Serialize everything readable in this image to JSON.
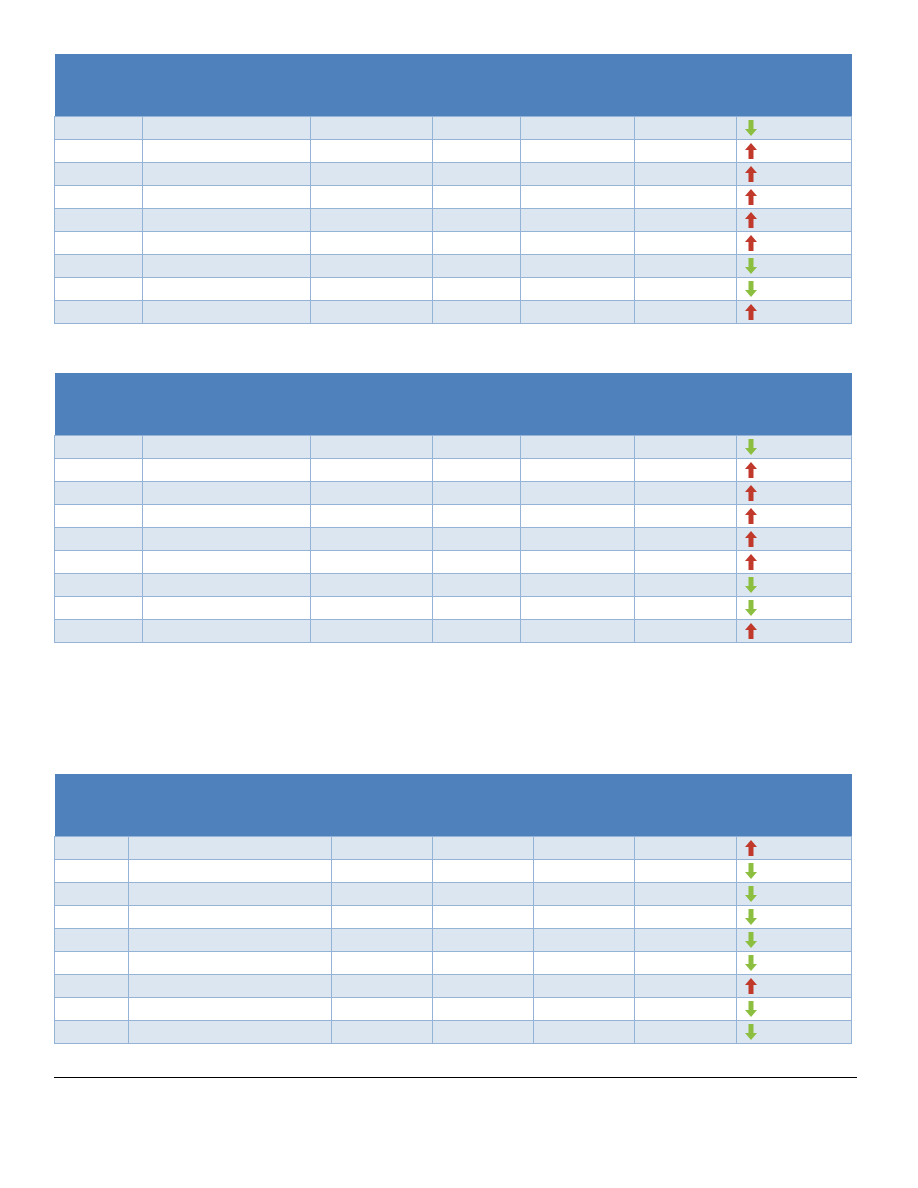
{
  "colors": {
    "header": "#4f81bd",
    "row_band": "#dce6f1",
    "border": "#95b3d7",
    "up_arrow": "#c0392b",
    "down_arrow": "#8cbf3f"
  },
  "tables": [
    {
      "trends": [
        "down",
        "up",
        "up",
        "up",
        "up",
        "up",
        "down",
        "down",
        "up"
      ]
    },
    {
      "trends": [
        "down",
        "up",
        "up",
        "up",
        "up",
        "up",
        "down",
        "down",
        "up"
      ]
    },
    {
      "trends": [
        "up",
        "down",
        "down",
        "down",
        "down",
        "down",
        "up",
        "down",
        "down"
      ]
    }
  ]
}
